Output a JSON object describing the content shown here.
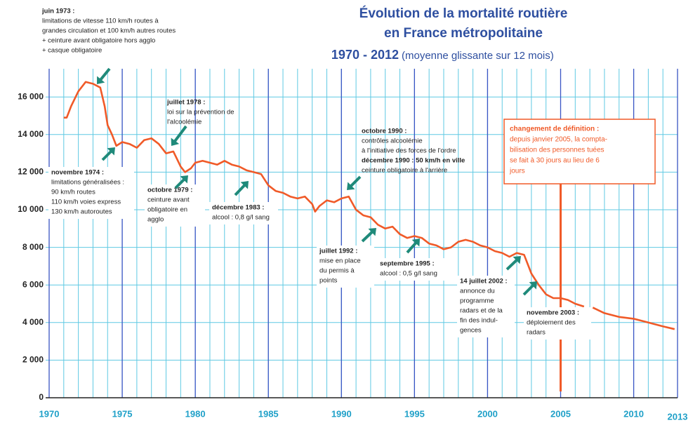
{
  "chart_data": {
    "type": "line",
    "title": "Évolution de la mortalité routière",
    "title_line2": "en France métropolitaine",
    "subtitle": "1970 - 2012",
    "subtitle_note": "(moyenne glissante sur 12 mois)",
    "xlim": [
      1970,
      2013
    ],
    "xticks": [
      1970,
      1975,
      1980,
      1985,
      1990,
      1995,
      2000,
      2005,
      2010,
      2013
    ],
    "x_minor_grid_step": 1,
    "ylim": [
      0,
      17500
    ],
    "yticks": [
      0,
      {
        "value": 2000,
        "label": "2 000"
      },
      {
        "value": 4000,
        "label": "4 000"
      },
      {
        "value": 6000,
        "label": "6 000"
      },
      {
        "value": 8000,
        "label": "8 000"
      },
      {
        "value": 10000,
        "label": "10 000"
      },
      {
        "value": 12000,
        "label": "12 000"
      },
      {
        "value": 14000,
        "label": "14 000"
      },
      {
        "value": 16000,
        "label": "16 000"
      }
    ],
    "grid": true,
    "series": [
      {
        "color": "#f05a28",
        "x": [
          1971,
          1971.2,
          1971.5,
          1972,
          1972.5,
          1973,
          1973.5,
          1973.8,
          1974,
          1974.3,
          1974.6,
          1975,
          1975.5,
          1976,
          1976.5,
          1977,
          1977.5,
          1978,
          1978.5,
          1979,
          1979.3,
          1979.7,
          1980,
          1980.5,
          1981,
          1981.5,
          1982,
          1982.5,
          1983,
          1983.5,
          1984,
          1984.5,
          1985,
          1985.5,
          1986,
          1986.5,
          1987,
          1987.5,
          1988,
          1988.2,
          1988.5,
          1989,
          1989.5,
          1990,
          1990.5,
          1991,
          1991.5,
          1992,
          1992.5,
          1993,
          1993.5,
          1994,
          1994.5,
          1995,
          1995.5,
          1996,
          1996.5,
          1997,
          1997.5,
          1998,
          1998.5,
          1999,
          1999.5,
          2000,
          2000.5,
          2001,
          2001.5,
          2002,
          2002.5,
          2003,
          2003.5,
          2004,
          2004.5,
          2005,
          2005.5,
          2006,
          2006.6,
          2006.8,
          2007.2,
          2008,
          2009,
          2010,
          2011,
          2012,
          2012.8
        ],
        "values": [
          14900,
          14900,
          15500,
          16300,
          16800,
          16700,
          16500,
          15500,
          14500,
          14000,
          13400,
          13600,
          13500,
          13300,
          13700,
          13800,
          13500,
          13000,
          13100,
          12300,
          12000,
          12200,
          12500,
          12600,
          12500,
          12400,
          12600,
          12400,
          12300,
          12100,
          12000,
          11900,
          11300,
          11000,
          10900,
          10700,
          10600,
          10700,
          10300,
          9900,
          10200,
          10500,
          10400,
          10600,
          10700,
          10000,
          9700,
          9600,
          9200,
          9000,
          9100,
          8700,
          8500,
          8600,
          8500,
          8200,
          8100,
          7900,
          8000,
          8300,
          8400,
          8300,
          8100,
          8000,
          7800,
          7700,
          7500,
          7700,
          7600,
          6600,
          6000,
          5500,
          5300,
          5300,
          5200,
          5000,
          4850,
          null,
          4800,
          4500,
          4300,
          4200,
          4000,
          3800,
          3650
        ]
      }
    ],
    "annotations": [
      {
        "title": "juin 1973 :",
        "lines": [
          "limitations de vitesse 110 km/h routes à",
          "grandes circulation et 100 km/h autres routes",
          "+ ceinture avant obligatoire hors agglo",
          "+ casque obligatoire"
        ]
      },
      {
        "title": "juillet 1978 :",
        "lines": [
          "loi sur la prévention de",
          "l'alcoolémie"
        ]
      },
      {
        "title": "novembre 1974 :",
        "lines": [
          "limitations généralisées :",
          "90 km/h routes",
          "110 km/h voies express",
          "130 km/h autoroutes"
        ]
      },
      {
        "title": "octobre 1979 :",
        "lines": [
          "ceinture avant",
          "obligatoire en",
          "agglo"
        ]
      },
      {
        "title": "décembre 1983 :",
        "lines": [
          "alcool : 0,8 g/l sang"
        ]
      },
      {
        "title": "octobre 1990 :",
        "lines": [
          "contrôles alcoolémie",
          "à l'initiative des forces de l'ordre",
          "décembre 1990 : 50 km/h en ville",
          "ceinture  obligatoire à l'arrière"
        ]
      },
      {
        "title": "juillet 1992 :",
        "lines": [
          "mise en place",
          "du permis à",
          "points"
        ]
      },
      {
        "title": "septembre 1995 :",
        "lines": [
          "alcool : 0,5 g/l sang"
        ]
      },
      {
        "title": "14 juillet 2002 :",
        "lines": [
          "annonce du",
          "programme",
          "radars et de la",
          "fin des indul-",
          "gences"
        ]
      },
      {
        "title": "novembre 2003 :",
        "lines": [
          "déploiement des",
          "radars"
        ]
      }
    ],
    "definition_note": {
      "title": "changement de définition :",
      "lines": [
        "depuis janvier 2005, la compta-",
        "bilisation  des personnes tuées",
        "se fait à 30 jours au lieu de 6",
        "jours"
      ]
    }
  }
}
